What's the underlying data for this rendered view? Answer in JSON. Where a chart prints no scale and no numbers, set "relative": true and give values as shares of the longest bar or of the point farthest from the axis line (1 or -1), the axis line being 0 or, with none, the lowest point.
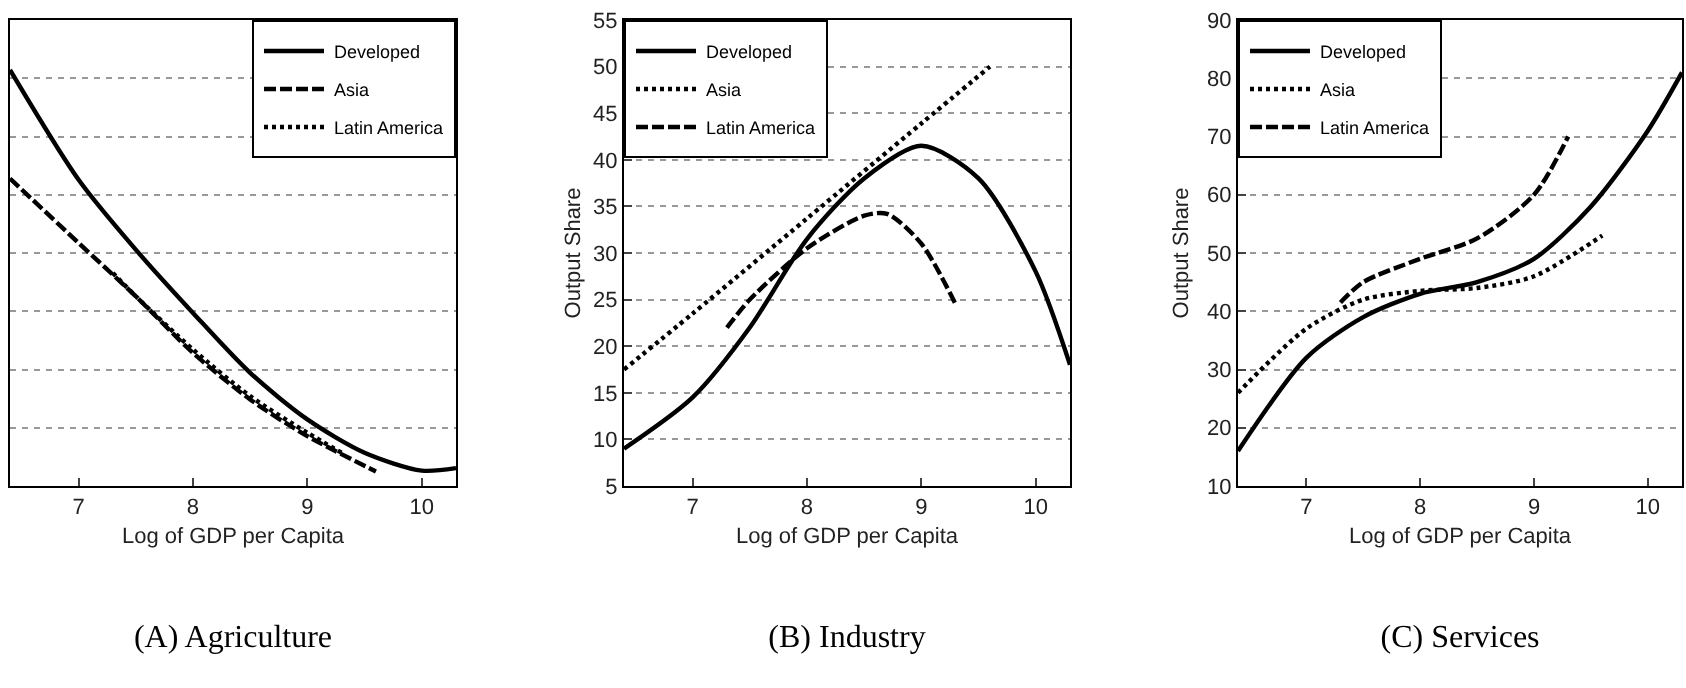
{
  "chart_data": [
    {
      "type": "line",
      "title": "(A) Agriculture",
      "xlabel": "Log of GDP per Capita",
      "relative": true,
      "xlim": [
        6.4,
        10.3
      ],
      "xticks": [
        7,
        8,
        9,
        10
      ],
      "tick_labels": "x",
      "grid": "y",
      "legend": "top right",
      "marker": "none",
      "series": [
        {
          "name": "Developed",
          "color": "#000000",
          "line_style": "solid",
          "x": [
            6.4,
            7,
            7.5,
            8,
            8.5,
            9,
            9.5,
            10,
            10.3
          ],
          "values": [
            1.0,
            0.736,
            0.568,
            0.416,
            0.272,
            0.16,
            0.08,
            0.037,
            0.043
          ]
        },
        {
          "name": "Asia",
          "color": "#000000",
          "line_style": "dashed",
          "x": [
            6.4,
            7,
            7.5,
            8,
            8.5,
            9,
            9.6
          ],
          "values": [
            0.739,
            0.584,
            0.456,
            0.32,
            0.208,
            0.12,
            0.035
          ]
        },
        {
          "name": "Latin America",
          "color": "#000000",
          "line_style": "dotted",
          "x": [
            7.3,
            7.5,
            8,
            8.5,
            9,
            9.3
          ],
          "values": [
            0.512,
            0.456,
            0.328,
            0.216,
            0.128,
            0.08
          ]
        }
      ]
    },
    {
      "type": "line",
      "title": "(B) Industry",
      "xlabel": "Log of GDP per Capita",
      "ylabel": "Output Share",
      "xlim": [
        6.4,
        10.3
      ],
      "xticks": [
        7,
        8,
        9,
        10
      ],
      "ylim": [
        5,
        55
      ],
      "yticks": [
        5,
        10,
        15,
        20,
        25,
        30,
        35,
        40,
        45,
        50,
        55
      ],
      "grid": "y",
      "legend": "top left",
      "marker": "none",
      "series": [
        {
          "name": "Developed",
          "color": "#000000",
          "line_style": "solid",
          "x": [
            6.4,
            7,
            7.5,
            8,
            8.5,
            9,
            9.5,
            10,
            10.3
          ],
          "values": [
            9,
            14.5,
            22,
            31.5,
            38,
            41.5,
            38,
            28,
            18
          ]
        },
        {
          "name": "Asia",
          "color": "#000000",
          "line_style": "dotted",
          "x": [
            6.4,
            7,
            8,
            9,
            9.6
          ],
          "values": [
            17.5,
            23.5,
            33.7,
            43.9,
            50
          ]
        },
        {
          "name": "Latin America",
          "color": "#000000",
          "line_style": "dashed",
          "x": [
            7.3,
            7.5,
            8,
            8.5,
            8.7,
            9,
            9.3
          ],
          "values": [
            22,
            25,
            30.5,
            34,
            34.2,
            31,
            24.5
          ]
        }
      ]
    },
    {
      "type": "line",
      "title": "(C) Services",
      "xlabel": "Log of GDP per Capita",
      "ylabel": "Output Share",
      "xlim": [
        6.4,
        10.3
      ],
      "xticks": [
        7,
        8,
        9,
        10
      ],
      "ylim": [
        10,
        90
      ],
      "yticks": [
        10,
        20,
        30,
        40,
        50,
        60,
        70,
        80,
        90
      ],
      "grid": "y",
      "legend": "top left",
      "marker": "none",
      "series": [
        {
          "name": "Developed",
          "color": "#000000",
          "line_style": "solid",
          "x": [
            6.4,
            7,
            7.5,
            8,
            8.5,
            9,
            9.5,
            10,
            10.3
          ],
          "values": [
            16,
            32,
            39,
            43,
            45,
            49,
            58,
            71,
            81
          ]
        },
        {
          "name": "Asia",
          "color": "#000000",
          "line_style": "dotted",
          "x": [
            6.4,
            7,
            7.5,
            8,
            8.5,
            9,
            9.6
          ],
          "values": [
            26,
            37,
            42,
            43.5,
            44,
            46,
            53
          ]
        },
        {
          "name": "Latin America",
          "color": "#000000",
          "line_style": "dashed",
          "x": [
            7.3,
            7.5,
            8,
            8.5,
            9,
            9.3
          ],
          "values": [
            41.5,
            45,
            49,
            52.5,
            60,
            70
          ]
        }
      ]
    }
  ]
}
